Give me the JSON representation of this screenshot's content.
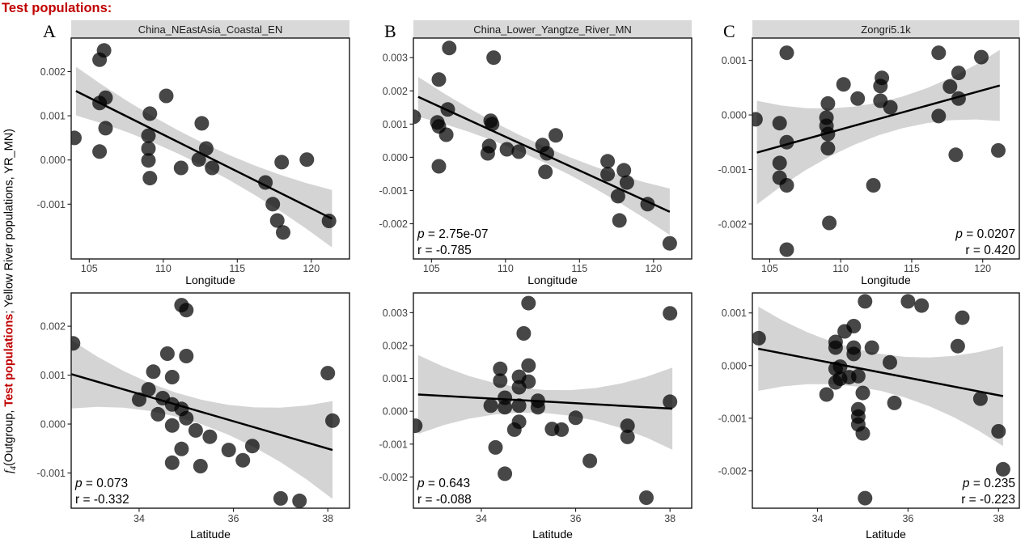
{
  "header": {
    "label": "Test populations:"
  },
  "y_axis_label": {
    "f": "f",
    "sub": "4",
    "part1": "(Outgroup, ",
    "highlight": "Test populations",
    "part2": "; Yellow River populations, YR_MN)"
  },
  "colors": {
    "accent_red": "#c00000",
    "strip_bg": "#d9d9d9",
    "ribbon": "#d4d4d4",
    "point": "#000000",
    "trend_line": "#000000",
    "tick_label": "#404040",
    "panel_border": "#1a1a1a"
  },
  "chart_data": [
    {
      "id": "A-longitude",
      "type": "scatter",
      "letter": "A",
      "strip": "China_NEastAsia_Coastal_EN",
      "xlabel": "Longitude",
      "xlim": [
        103.78,
        122.58
      ],
      "xticks": [
        105,
        110,
        115,
        120
      ],
      "ylim": [
        -0.00224,
        0.00276
      ],
      "yticks": [
        0.002,
        0.001,
        0.0,
        -0.001
      ],
      "ytick_labels": [
        "0.002",
        "0.001",
        "0.000",
        "-0.001"
      ],
      "points": [
        [
          106.0,
          0.00248
        ],
        [
          105.7,
          0.00227
        ],
        [
          106.1,
          0.00141
        ],
        [
          105.7,
          0.00129
        ],
        [
          110.2,
          0.00145
        ],
        [
          109.1,
          0.00105
        ],
        [
          106.1,
          0.00072
        ],
        [
          104.0,
          0.0005
        ],
        [
          105.7,
          0.00019
        ],
        [
          109.0,
          0.00055
        ],
        [
          109.0,
          0.00026
        ],
        [
          109.0,
          -1e-05
        ],
        [
          112.6,
          0.00083
        ],
        [
          112.9,
          0.00026
        ],
        [
          112.4,
          1e-05
        ],
        [
          113.3,
          -0.00018
        ],
        [
          111.2,
          -0.00018
        ],
        [
          109.1,
          -0.00041
        ],
        [
          116.9,
          -0.00051
        ],
        [
          117.4,
          -0.001
        ],
        [
          118.0,
          -5e-05
        ],
        [
          119.7,
          1e-05
        ],
        [
          117.7,
          -0.00137
        ],
        [
          118.1,
          -0.00164
        ],
        [
          121.2,
          -0.00138
        ]
      ],
      "trend": {
        "x": [
          104.1,
          121.4
        ],
        "y": [
          0.00156,
          -0.00133
        ]
      },
      "ribbon_halfwidth": [
        0.00055,
        0.00026,
        0.00065
      ],
      "stats": null
    },
    {
      "id": "B-longitude",
      "type": "scatter",
      "letter": "B",
      "strip": "China_Lower_Yangtze_River_MN",
      "xlabel": "Longitude",
      "xlim": [
        103.78,
        122.58
      ],
      "xticks": [
        105,
        110,
        115,
        120
      ],
      "ylim": [
        -0.00306,
        0.00359
      ],
      "yticks": [
        0.003,
        0.002,
        0.001,
        0.0,
        -0.001,
        -0.002
      ],
      "ytick_labels": [
        "0.003",
        "0.002",
        "0.001",
        "0.000",
        "-0.001",
        "-0.002"
      ],
      "points": [
        [
          106.2,
          0.00329
        ],
        [
          109.2,
          0.003
        ],
        [
          105.5,
          0.00234
        ],
        [
          106.1,
          0.00144
        ],
        [
          103.8,
          0.00122
        ],
        [
          105.4,
          0.00105
        ],
        [
          105.5,
          0.00093
        ],
        [
          106.0,
          0.00068
        ],
        [
          109.0,
          0.0011
        ],
        [
          109.1,
          0.001
        ],
        [
          108.9,
          0.00034
        ],
        [
          108.8,
          0.00012
        ],
        [
          110.1,
          0.00024
        ],
        [
          110.9,
          0.00017
        ],
        [
          112.5,
          0.00037
        ],
        [
          112.8,
          0.00012
        ],
        [
          113.4,
          0.00066
        ],
        [
          112.7,
          -0.00044
        ],
        [
          105.5,
          -0.00027
        ],
        [
          116.9,
          -0.00012
        ],
        [
          116.9,
          -0.00051
        ],
        [
          118.0,
          -0.00039
        ],
        [
          118.2,
          -0.00076
        ],
        [
          117.6,
          -0.00117
        ],
        [
          119.6,
          -0.00141
        ],
        [
          117.7,
          -0.0019
        ],
        [
          121.1,
          -0.00259
        ]
      ],
      "trend": {
        "x": [
          104.1,
          121.1
        ],
        "y": [
          0.00182,
          -0.00164
        ]
      },
      "ribbon_halfwidth": [
        0.0006,
        0.00024,
        0.0007
      ],
      "stats": {
        "p": "2.75e-07",
        "r": "-0.785",
        "anchor": "left"
      }
    },
    {
      "id": "C-longitude",
      "type": "scatter",
      "letter": "C",
      "strip": "Zongri5.1k",
      "xlabel": "Longitude",
      "xlim": [
        103.78,
        122.58
      ],
      "xticks": [
        105,
        110,
        115,
        120
      ],
      "ylim": [
        -0.00264,
        0.00141
      ],
      "yticks": [
        0.001,
        0.0,
        -0.001,
        -0.002
      ],
      "ytick_labels": [
        "0.001",
        "0.000",
        "-0.001",
        "-0.002"
      ],
      "points": [
        [
          106.2,
          0.00114
        ],
        [
          116.9,
          0.00114
        ],
        [
          119.9,
          0.00106
        ],
        [
          118.3,
          0.00077
        ],
        [
          112.9,
          0.00068
        ],
        [
          110.2,
          0.00056
        ],
        [
          112.8,
          0.00053
        ],
        [
          111.2,
          0.0003
        ],
        [
          112.8,
          0.00026
        ],
        [
          109.1,
          0.00021
        ],
        [
          117.7,
          0.00052
        ],
        [
          118.3,
          0.0003
        ],
        [
          113.5,
          0.00014
        ],
        [
          104.0,
          -8e-05
        ],
        [
          105.7,
          -0.00015
        ],
        [
          109.0,
          -5e-05
        ],
        [
          109.0,
          -0.0002
        ],
        [
          109.1,
          -0.00035
        ],
        [
          116.9,
          -2e-05
        ],
        [
          106.2,
          -0.0005
        ],
        [
          109.1,
          -0.00061
        ],
        [
          118.1,
          -0.00073
        ],
        [
          121.1,
          -0.00065
        ],
        [
          105.7,
          -0.00088
        ],
        [
          105.7,
          -0.00115
        ],
        [
          106.2,
          -0.00129
        ],
        [
          112.3,
          -0.00129
        ],
        [
          109.2,
          -0.00198
        ],
        [
          106.2,
          -0.00247
        ]
      ],
      "trend": {
        "x": [
          104.1,
          121.2
        ],
        "y": [
          -0.00069,
          0.00054
        ]
      },
      "ribbon_halfwidth": [
        0.00095,
        0.0003,
        0.00065
      ],
      "stats": {
        "p": "0.0207",
        "r": "0.420",
        "anchor": "right"
      }
    },
    {
      "id": "A-latitude",
      "type": "scatter",
      "letter": null,
      "strip": null,
      "xlabel": "Latitude",
      "xlim": [
        32.56,
        38.46
      ],
      "xticks": [
        34,
        36,
        38
      ],
      "ylim": [
        -0.00172,
        0.00268
      ],
      "yticks": [
        0.002,
        0.001,
        0.0,
        -0.001
      ],
      "ytick_labels": [
        "0.002",
        "0.001",
        "0.000",
        "-0.001"
      ],
      "points": [
        [
          34.9,
          0.00243
        ],
        [
          35.0,
          0.00233
        ],
        [
          34.6,
          0.00144
        ],
        [
          35.0,
          0.00139
        ],
        [
          32.6,
          0.00165
        ],
        [
          34.3,
          0.00107
        ],
        [
          34.7,
          0.00096
        ],
        [
          34.2,
          0.00071
        ],
        [
          34.0,
          0.0005
        ],
        [
          34.5,
          0.00053
        ],
        [
          34.7,
          0.0004
        ],
        [
          34.9,
          0.00031
        ],
        [
          34.4,
          0.0002
        ],
        [
          35.0,
          0.00012
        ],
        [
          35.2,
          -0.00013
        ],
        [
          34.7,
          -3e-05
        ],
        [
          35.5,
          -0.00026
        ],
        [
          34.9,
          -0.00051
        ],
        [
          35.9,
          -0.00053
        ],
        [
          36.4,
          -0.00045
        ],
        [
          36.2,
          -0.00074
        ],
        [
          35.3,
          -0.00086
        ],
        [
          34.7,
          -0.00079
        ],
        [
          38.0,
          0.00104
        ],
        [
          38.1,
          7e-05
        ],
        [
          37.0,
          -0.00152
        ],
        [
          37.4,
          -0.00157
        ]
      ],
      "trend": {
        "x": [
          32.56,
          38.1
        ],
        "y": [
          0.00102,
          -0.00053
        ]
      },
      "ribbon_halfwidth": [
        0.0007,
        0.00025,
        0.001
      ],
      "stats": {
        "p": "0.073",
        "r": "-0.332",
        "anchor": "left"
      }
    },
    {
      "id": "B-latitude",
      "type": "scatter",
      "letter": null,
      "strip": null,
      "xlabel": "Latitude",
      "xlim": [
        32.56,
        38.46
      ],
      "xticks": [
        34,
        36,
        38
      ],
      "ylim": [
        -0.00295,
        0.0036
      ],
      "yticks": [
        0.003,
        0.002,
        0.001,
        0.0,
        -0.001,
        -0.002
      ],
      "ytick_labels": [
        "0.003",
        "0.002",
        "0.001",
        "0.000",
        "-0.001",
        "-0.002"
      ],
      "points": [
        [
          35.0,
          0.00329
        ],
        [
          38.0,
          0.00298
        ],
        [
          34.9,
          0.00237
        ],
        [
          34.4,
          0.00129
        ],
        [
          35.0,
          0.00139
        ],
        [
          34.8,
          0.00105
        ],
        [
          34.4,
          0.00093
        ],
        [
          35.0,
          0.0009
        ],
        [
          34.8,
          0.00073
        ],
        [
          34.5,
          0.00041
        ],
        [
          34.2,
          0.00017
        ],
        [
          34.5,
          0.00012
        ],
        [
          34.8,
          0.00017
        ],
        [
          35.2,
          0.00032
        ],
        [
          35.2,
          0.00012
        ],
        [
          36.0,
          -0.0002
        ],
        [
          34.8,
          -0.00032
        ],
        [
          34.7,
          -0.00056
        ],
        [
          35.5,
          -0.00054
        ],
        [
          35.7,
          -0.00056
        ],
        [
          37.1,
          -0.00044
        ],
        [
          37.1,
          -0.00078
        ],
        [
          32.6,
          -0.00044
        ],
        [
          38.0,
          0.00029
        ],
        [
          34.3,
          -0.0011
        ],
        [
          36.3,
          -0.00151
        ],
        [
          34.5,
          -0.0019
        ],
        [
          37.5,
          -0.00263
        ]
      ],
      "trend": {
        "x": [
          32.66,
          38.05
        ],
        "y": [
          0.00051,
          8e-05
        ]
      },
      "ribbon_halfwidth": [
        0.0012,
        0.00035,
        0.00125
      ],
      "stats": {
        "p": "0.643",
        "r": "-0.088",
        "anchor": "left"
      }
    },
    {
      "id": "C-latitude",
      "type": "scatter",
      "letter": null,
      "strip": null,
      "xlabel": "Latitude",
      "xlim": [
        32.56,
        38.46
      ],
      "xticks": [
        34,
        36,
        38
      ],
      "ylim": [
        -0.00271,
        0.00138
      ],
      "yticks": [
        0.001,
        0.0,
        -0.001,
        -0.002
      ],
      "ytick_labels": [
        "0.001",
        "0.000",
        "-0.001",
        "-0.002"
      ],
      "points": [
        [
          35.05,
          0.00122
        ],
        [
          36.0,
          0.00122
        ],
        [
          36.3,
          0.00114
        ],
        [
          37.2,
          0.00091
        ],
        [
          34.8,
          0.00075
        ],
        [
          34.6,
          0.00065
        ],
        [
          32.7,
          0.00052
        ],
        [
          37.1,
          0.00037
        ],
        [
          34.4,
          0.00045
        ],
        [
          34.8,
          0.00034
        ],
        [
          34.4,
          0.00034
        ],
        [
          34.8,
          0.00022
        ],
        [
          35.2,
          0.00034
        ],
        [
          35.6,
          6e-05
        ],
        [
          34.5,
          -2e-05
        ],
        [
          34.4,
          -6e-05
        ],
        [
          34.5,
          -0.00025
        ],
        [
          34.7,
          -0.00022
        ],
        [
          34.9,
          -0.0002
        ],
        [
          34.4,
          -0.00032
        ],
        [
          34.2,
          -0.00055
        ],
        [
          35.0,
          -0.00052
        ],
        [
          35.7,
          -0.00071
        ],
        [
          37.6,
          -0.00063
        ],
        [
          34.9,
          -0.00083
        ],
        [
          34.9,
          -0.00097
        ],
        [
          34.9,
          -0.00112
        ],
        [
          35.0,
          -0.00129
        ],
        [
          38.0,
          -0.00125
        ],
        [
          38.1,
          -0.00197
        ],
        [
          35.05,
          -0.00252
        ]
      ],
      "trend": {
        "x": [
          32.69,
          38.1
        ],
        "y": [
          0.00032,
          -0.00058
        ]
      },
      "ribbon_halfwidth": [
        0.0008,
        0.00035,
        0.00095
      ],
      "stats": {
        "p": "0.235",
        "r": "-0.223",
        "anchor": "right"
      }
    }
  ]
}
